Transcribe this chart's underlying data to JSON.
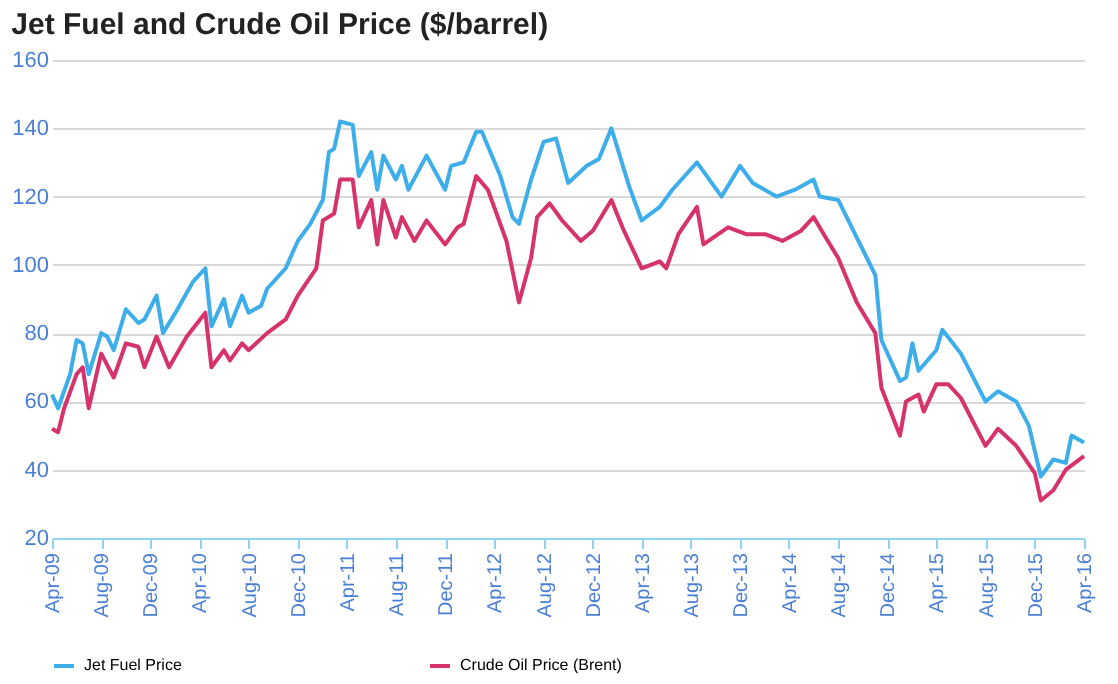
{
  "chart_data": {
    "type": "line",
    "title": "Jet Fuel and Crude Oil Price ($/barrel)",
    "ylim": [
      20,
      160
    ],
    "yticks": [
      20,
      40,
      60,
      80,
      100,
      120,
      140,
      160
    ],
    "grid": "y",
    "legend": "bottom",
    "marker": "none",
    "line_style": "solid",
    "xlim": [
      "2009-04-01",
      "2016-04-01"
    ],
    "xticks": [
      {
        "value": "2009-04-01",
        "label": "Apr-09"
      },
      {
        "value": "2009-08-01",
        "label": "Aug-09"
      },
      {
        "value": "2009-12-01",
        "label": "Dec-09"
      },
      {
        "value": "2010-04-01",
        "label": "Apr-10"
      },
      {
        "value": "2010-08-01",
        "label": "Aug-10"
      },
      {
        "value": "2010-12-01",
        "label": "Dec-10"
      },
      {
        "value": "2011-04-01",
        "label": "Apr-11"
      },
      {
        "value": "2011-08-01",
        "label": "Aug-11"
      },
      {
        "value": "2011-12-01",
        "label": "Dec-11"
      },
      {
        "value": "2012-04-01",
        "label": "Apr-12"
      },
      {
        "value": "2012-08-01",
        "label": "Aug-12"
      },
      {
        "value": "2012-12-01",
        "label": "Dec-12"
      },
      {
        "value": "2013-04-01",
        "label": "Apr-13"
      },
      {
        "value": "2013-08-01",
        "label": "Aug-13"
      },
      {
        "value": "2013-12-01",
        "label": "Dec-13"
      },
      {
        "value": "2014-04-01",
        "label": "Apr-14"
      },
      {
        "value": "2014-08-01",
        "label": "Aug-14"
      },
      {
        "value": "2014-12-01",
        "label": "Dec-14"
      },
      {
        "value": "2015-04-01",
        "label": "Apr-15"
      },
      {
        "value": "2015-08-01",
        "label": "Aug-15"
      },
      {
        "value": "2015-12-01",
        "label": "Dec-15"
      },
      {
        "value": "2016-04-01",
        "label": "Apr-16"
      }
    ],
    "series": [
      {
        "name": "Jet Fuel Price",
        "color": "#3daee9",
        "x": [
          "2009-04-01",
          "2009-04-16",
          "2009-05-16",
          "2009-06-01",
          "2009-06-16",
          "2009-07-01",
          "2009-08-01",
          "2009-08-16",
          "2009-09-01",
          "2009-10-01",
          "2009-11-01",
          "2009-11-16",
          "2009-12-16",
          "2010-01-01",
          "2010-02-01",
          "2010-03-16",
          "2010-04-16",
          "2010-05-01",
          "2010-06-01",
          "2010-06-16",
          "2010-07-16",
          "2010-08-01",
          "2010-09-01",
          "2010-09-16",
          "2010-11-01",
          "2010-12-01",
          "2011-01-01",
          "2011-02-01",
          "2011-02-16",
          "2011-03-01",
          "2011-03-16",
          "2011-04-16",
          "2011-05-01",
          "2011-06-01",
          "2011-06-16",
          "2011-07-01",
          "2011-08-01",
          "2011-08-16",
          "2011-09-01",
          "2011-10-16",
          "2011-12-01",
          "2011-12-16",
          "2012-01-16",
          "2012-02-16",
          "2012-03-01",
          "2012-04-16",
          "2012-05-16",
          "2012-06-01",
          "2012-07-01",
          "2012-08-01",
          "2012-09-01",
          "2012-10-01",
          "2012-11-16",
          "2012-12-16",
          "2013-01-16",
          "2013-03-01",
          "2013-04-01",
          "2013-05-16",
          "2013-06-16",
          "2013-08-16",
          "2013-10-16",
          "2013-12-01",
          "2014-01-01",
          "2014-03-01",
          "2014-04-16",
          "2014-06-01",
          "2014-06-16",
          "2014-08-01",
          "2014-09-16",
          "2014-11-01",
          "2014-11-16",
          "2015-01-01",
          "2015-01-16",
          "2015-02-01",
          "2015-02-16",
          "2015-04-01",
          "2015-04-16",
          "2015-06-01",
          "2015-08-01",
          "2015-09-01",
          "2015-10-16",
          "2015-11-16",
          "2015-12-16",
          "2016-01-16",
          "2016-02-16",
          "2016-03-01",
          "2016-04-01"
        ],
        "values": [
          62,
          58,
          68,
          78,
          77,
          68,
          80,
          79,
          75,
          87,
          83,
          84,
          91,
          80,
          86,
          95,
          99,
          82,
          90,
          82,
          91,
          86,
          88,
          93,
          99,
          107,
          112,
          119,
          133,
          134,
          142,
          141,
          126,
          133,
          122,
          132,
          125,
          129,
          122,
          132,
          122,
          129,
          130,
          139,
          139,
          126,
          114,
          112,
          125,
          136,
          137,
          124,
          129,
          131,
          140,
          123,
          113,
          117,
          122,
          130,
          120,
          129,
          124,
          120,
          122,
          125,
          120,
          119,
          108,
          97,
          78,
          66,
          67,
          77,
          69,
          75,
          81,
          74,
          60,
          63,
          60,
          53,
          38,
          43,
          42,
          50,
          48
        ]
      },
      {
        "name": "Crude Oil Price (Brent)",
        "color": "#d6336c",
        "x": [
          "2009-04-01",
          "2009-04-16",
          "2009-05-01",
          "2009-06-01",
          "2009-06-16",
          "2009-07-01",
          "2009-08-01",
          "2009-09-01",
          "2009-10-01",
          "2009-11-01",
          "2009-11-16",
          "2009-12-16",
          "2010-01-16",
          "2010-03-01",
          "2010-04-16",
          "2010-05-01",
          "2010-06-01",
          "2010-06-16",
          "2010-07-16",
          "2010-08-01",
          "2010-09-16",
          "2010-11-01",
          "2010-12-01",
          "2011-01-16",
          "2011-02-01",
          "2011-03-01",
          "2011-03-16",
          "2011-04-16",
          "2011-05-01",
          "2011-06-01",
          "2011-06-16",
          "2011-07-01",
          "2011-08-01",
          "2011-08-16",
          "2011-09-16",
          "2011-10-16",
          "2011-12-01",
          "2012-01-01",
          "2012-01-16",
          "2012-02-16",
          "2012-03-16",
          "2012-05-01",
          "2012-06-01",
          "2012-07-01",
          "2012-07-16",
          "2012-08-16",
          "2012-09-16",
          "2012-11-01",
          "2012-12-01",
          "2013-01-16",
          "2013-02-16",
          "2013-04-01",
          "2013-05-16",
          "2013-06-01",
          "2013-07-01",
          "2013-08-16",
          "2013-09-01",
          "2013-11-01",
          "2013-12-16",
          "2014-02-01",
          "2014-03-16",
          "2014-05-01",
          "2014-06-01",
          "2014-07-01",
          "2014-08-01",
          "2014-09-16",
          "2014-11-01",
          "2014-11-16",
          "2015-01-01",
          "2015-01-16",
          "2015-02-16",
          "2015-03-01",
          "2015-04-01",
          "2015-05-01",
          "2015-06-01",
          "2015-08-01",
          "2015-09-01",
          "2015-10-16",
          "2015-12-01",
          "2015-12-16",
          "2016-01-16",
          "2016-02-16",
          "2016-04-01"
        ],
        "values": [
          52,
          51,
          58,
          68,
          70,
          58,
          74,
          67,
          77,
          76,
          70,
          79,
          70,
          79,
          86,
          70,
          75,
          72,
          77,
          75,
          80,
          84,
          91,
          99,
          113,
          115,
          125,
          125,
          111,
          119,
          106,
          119,
          108,
          114,
          107,
          113,
          106,
          111,
          112,
          126,
          122,
          107,
          89,
          102,
          114,
          118,
          113,
          107,
          110,
          119,
          110,
          99,
          101,
          99,
          109,
          117,
          106,
          111,
          109,
          109,
          107,
          110,
          114,
          108,
          102,
          89,
          80,
          64,
          50,
          60,
          62,
          57,
          65,
          65,
          61,
          47,
          52,
          47,
          39,
          31,
          34,
          40,
          44
        ]
      }
    ]
  }
}
